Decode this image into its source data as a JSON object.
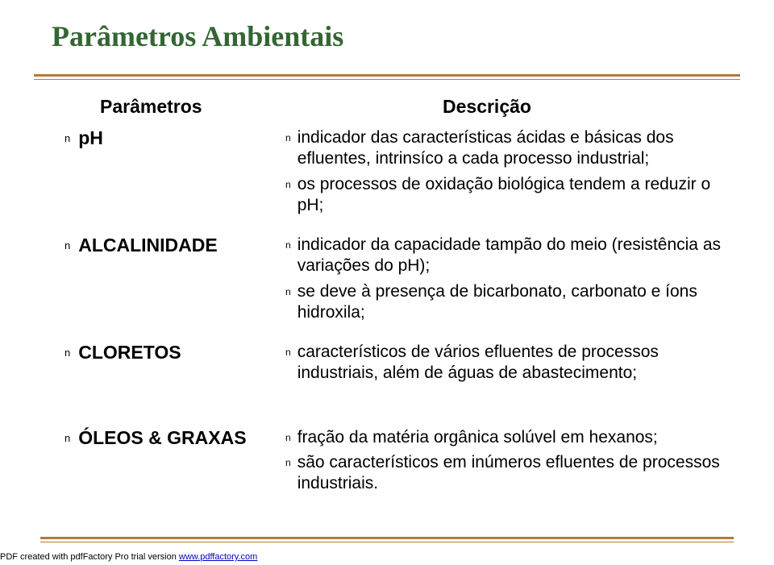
{
  "title": "Parâmetros Ambientais",
  "headers": {
    "left": "Parâmetros",
    "right": "Descrição"
  },
  "rows": [
    {
      "param": "pH",
      "desc": [
        "indicador das características ácidas e básicas dos efluentes, intrinsíco a cada processo industrial;",
        "os processos de oxidação biológica tendem a reduzir o pH;"
      ]
    },
    {
      "param": "ALCALINIDADE",
      "desc": [
        "indicador da capacidade tampão do meio (resistência as variações do pH);",
        "se deve à presença de bicarbonato, carbonato e íons hidroxila;"
      ]
    },
    {
      "param": "CLORETOS",
      "desc": [
        "característicos de vários efluentes de processos industriais, além de águas de abastecimento;"
      ]
    },
    {
      "param": "ÓLEOS & GRAXAS",
      "desc": [
        "fração da matéria orgânica solúvel em hexanos;",
        "são característicos em inúmeros efluentes de processos industriais."
      ]
    }
  ],
  "bullet_char": "n",
  "footer": {
    "prefix": "PDF created with pdfFactory Pro trial version ",
    "link_text": "www.pdffactory.com"
  },
  "colors": {
    "title": "#336633",
    "rule": "#b37b3a",
    "text": "#000000",
    "link": "#0000cc",
    "background": "#ffffff"
  },
  "fonts": {
    "title_family": "Times New Roman",
    "body_family": "Arial",
    "title_size_pt": 28,
    "header_size_pt": 18,
    "body_size_pt": 16,
    "footer_size_pt": 8
  }
}
